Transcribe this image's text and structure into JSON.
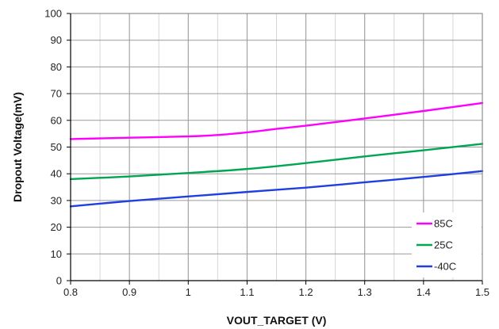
{
  "chart_data": {
    "type": "line",
    "title": "",
    "xlabel": "VOUT_TARGET (V)",
    "ylabel": "Dropout Voltage(mV)",
    "xlim": [
      0.8,
      1.5
    ],
    "ylim": [
      0,
      100
    ],
    "x_ticks": [
      "0.8",
      "0.9",
      "1",
      "1.1",
      "1.2",
      "1.3",
      "1.4",
      "1.5"
    ],
    "y_ticks": [
      "0",
      "10",
      "20",
      "30",
      "40",
      "50",
      "60",
      "70",
      "80",
      "90",
      "100"
    ],
    "x_minor_step": 0.05,
    "grid": true,
    "legend_position": "bottom-right",
    "series": [
      {
        "name": "85C",
        "color": "#ff00ff",
        "x": [
          0.8,
          0.9,
          1.0,
          1.05,
          1.1,
          1.15,
          1.2,
          1.3,
          1.4,
          1.5
        ],
        "y": [
          53,
          53.5,
          54,
          54.5,
          55.5,
          56.8,
          58,
          60.7,
          63.5,
          66.5
        ]
      },
      {
        "name": "25C",
        "color": "#00a651",
        "x": [
          0.8,
          0.9,
          1.0,
          1.1,
          1.2,
          1.3,
          1.4,
          1.5
        ],
        "y": [
          38,
          39,
          40.3,
          41.8,
          44,
          46.5,
          48.8,
          51.2
        ]
      },
      {
        "name": "-40C",
        "color": "#1f3fe0",
        "x": [
          0.8,
          0.9,
          1.0,
          1.1,
          1.2,
          1.3,
          1.4,
          1.5
        ],
        "y": [
          27.8,
          29.8,
          31.5,
          33.2,
          34.8,
          36.8,
          38.8,
          41
        ]
      }
    ]
  }
}
